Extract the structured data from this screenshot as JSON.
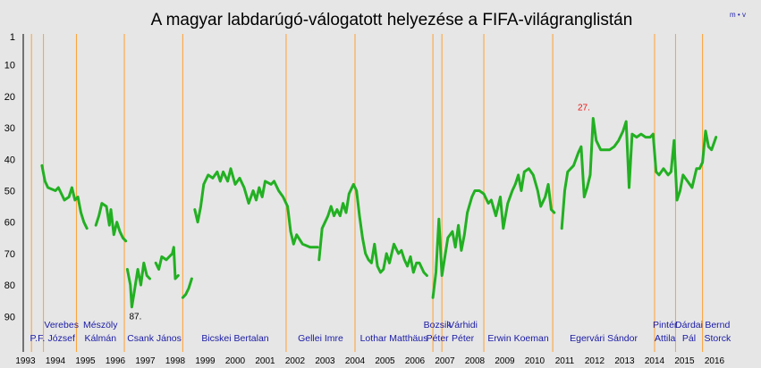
{
  "chart_data": {
    "type": "line",
    "title": "A magyar labdarúgó-válogatott helyezése a FIFA-világranglistán",
    "corner_label": "m • v",
    "y_axis": {
      "range": [
        1,
        100
      ],
      "inverted": true,
      "ticks": [
        "1",
        "10",
        "20",
        "30",
        "40",
        "50",
        "60",
        "70",
        "80",
        "90"
      ]
    },
    "x_axis": {
      "range": [
        1993,
        2016.6
      ],
      "ticks": [
        "1993",
        "1994",
        "1995",
        "1996",
        "1997",
        "1998",
        "1999",
        "2000",
        "2001",
        "2002",
        "2003",
        "2004",
        "2005",
        "2006",
        "2007",
        "2008",
        "2009",
        "2010",
        "2011",
        "2012",
        "2013",
        "2014",
        "2015",
        "2016"
      ]
    },
    "grid": false,
    "colors": {
      "background": "#e6e6e6",
      "line": "#22b022",
      "coach_change": "#ffa030",
      "coach_text": "#1a1aa6",
      "best_label": "#ee1111"
    },
    "coach_changes": [
      1993.2,
      1993.6,
      1994.7,
      1996.3,
      1998.25,
      2001.7,
      2004.0,
      2006.6,
      2006.9,
      2008.3,
      2010.6,
      2014.0,
      2014.7,
      2015.6
    ],
    "coaches": [
      {
        "lines": [
          "P.F."
        ],
        "x": 1993.4
      },
      {
        "lines": [
          "Verebes",
          "József"
        ],
        "x": 1994.2
      },
      {
        "lines": [
          "Mészöly",
          "Kálmán"
        ],
        "x": 1995.5
      },
      {
        "lines": [
          "Csank János"
        ],
        "x": 1997.3
      },
      {
        "lines": [
          "Bicskei Bertalan"
        ],
        "x": 2000.0
      },
      {
        "lines": [
          "Gellei Imre"
        ],
        "x": 2002.85
      },
      {
        "lines": [
          "Lothar Matthäus"
        ],
        "x": 2005.3
      },
      {
        "lines": [
          "Bozsik",
          "Péter"
        ],
        "x": 2006.75
      },
      {
        "lines": [
          "Várhidi",
          "Péter"
        ],
        "x": 2007.6
      },
      {
        "lines": [
          "Erwin Koeman"
        ],
        "x": 2009.45
      },
      {
        "lines": [
          "Egervári Sándor"
        ],
        "x": 2012.3
      },
      {
        "lines": [
          "Pintér",
          "Attila"
        ],
        "x": 2014.35
      },
      {
        "lines": [
          "Dárdai",
          "Pál"
        ],
        "x": 2015.15
      },
      {
        "lines": [
          "Bernd",
          "Storck"
        ],
        "x": 2016.1
      }
    ],
    "annotations": [
      {
        "text": "87.",
        "x": 1996.55,
        "y": 87,
        "kind": "worst"
      },
      {
        "text": "27.",
        "x": 2011.7,
        "y": 27,
        "kind": "best"
      }
    ],
    "series": [
      {
        "segments": [
          [
            [
              1993.55,
              42
            ],
            [
              1993.65,
              47
            ],
            [
              1993.75,
              49
            ],
            [
              1994.0,
              50
            ],
            [
              1994.1,
              49
            ],
            [
              1994.2,
              51
            ],
            [
              1994.3,
              53
            ],
            [
              1994.45,
              52
            ],
            [
              1994.55,
              49
            ],
            [
              1994.65,
              53
            ],
            [
              1994.75,
              52
            ],
            [
              1994.85,
              57
            ],
            [
              1994.95,
              60
            ],
            [
              1995.05,
              62
            ]
          ],
          [
            [
              1995.35,
              61
            ],
            [
              1995.45,
              58
            ],
            [
              1995.55,
              54
            ],
            [
              1995.7,
              55
            ],
            [
              1995.8,
              61
            ],
            [
              1995.85,
              56
            ],
            [
              1995.95,
              64
            ],
            [
              1996.05,
              60
            ],
            [
              1996.15,
              63
            ],
            [
              1996.25,
              65
            ],
            [
              1996.35,
              66
            ]
          ],
          [
            [
              1996.4,
              75
            ],
            [
              1996.5,
              80
            ],
            [
              1996.55,
              87
            ],
            [
              1996.65,
              81
            ],
            [
              1996.75,
              75
            ],
            [
              1996.85,
              80
            ],
            [
              1996.95,
              73
            ],
            [
              1997.05,
              77
            ],
            [
              1997.15,
              78
            ]
          ],
          [
            [
              1997.35,
              73
            ],
            [
              1997.45,
              75
            ],
            [
              1997.55,
              71
            ],
            [
              1997.7,
              72
            ],
            [
              1997.8,
              71
            ],
            [
              1997.9,
              70
            ],
            [
              1997.95,
              68
            ],
            [
              1998.0,
              78
            ],
            [
              1998.1,
              77
            ]
          ],
          [
            [
              1998.25,
              84
            ],
            [
              1998.35,
              83
            ],
            [
              1998.45,
              81
            ],
            [
              1998.55,
              78
            ]
          ],
          [
            [
              1998.65,
              56
            ],
            [
              1998.75,
              60
            ],
            [
              1998.85,
              55
            ],
            [
              1998.95,
              48
            ],
            [
              1999.1,
              45
            ],
            [
              1999.25,
              46
            ],
            [
              1999.4,
              44
            ],
            [
              1999.5,
              47
            ],
            [
              1999.6,
              44
            ],
            [
              1999.75,
              47
            ],
            [
              1999.85,
              43
            ],
            [
              2000.0,
              48
            ],
            [
              2000.15,
              46
            ],
            [
              2000.3,
              49
            ],
            [
              2000.45,
              54
            ],
            [
              2000.6,
              50
            ],
            [
              2000.7,
              53
            ],
            [
              2000.8,
              49
            ],
            [
              2000.9,
              52
            ],
            [
              2001.0,
              47
            ],
            [
              2001.2,
              48
            ],
            [
              2001.3,
              47
            ],
            [
              2001.45,
              50
            ],
            [
              2001.6,
              52
            ],
            [
              2001.75,
              55
            ],
            [
              2001.85,
              63
            ],
            [
              2001.95,
              67
            ],
            [
              2002.05,
              64
            ],
            [
              2002.25,
              67
            ],
            [
              2002.5,
              68
            ],
            [
              2002.75,
              68
            ]
          ],
          [
            [
              2002.8,
              72
            ],
            [
              2002.9,
              62
            ],
            [
              2003.0,
              60
            ],
            [
              2003.1,
              58
            ],
            [
              2003.2,
              55
            ],
            [
              2003.3,
              58
            ],
            [
              2003.4,
              56
            ],
            [
              2003.5,
              58
            ],
            [
              2003.6,
              54
            ],
            [
              2003.7,
              57
            ],
            [
              2003.8,
              51
            ],
            [
              2003.95,
              48
            ],
            [
              2004.05,
              50
            ],
            [
              2004.15,
              58
            ],
            [
              2004.25,
              65
            ],
            [
              2004.35,
              70
            ],
            [
              2004.45,
              72
            ],
            [
              2004.55,
              73
            ],
            [
              2004.65,
              67
            ],
            [
              2004.75,
              74
            ],
            [
              2004.85,
              76
            ],
            [
              2004.95,
              75
            ],
            [
              2005.05,
              70
            ],
            [
              2005.15,
              73
            ],
            [
              2005.3,
              67
            ],
            [
              2005.45,
              70
            ],
            [
              2005.55,
              69
            ],
            [
              2005.65,
              72
            ],
            [
              2005.75,
              74
            ],
            [
              2005.85,
              71
            ],
            [
              2005.95,
              76
            ],
            [
              2006.05,
              73
            ],
            [
              2006.15,
              73
            ],
            [
              2006.3,
              76
            ],
            [
              2006.4,
              77
            ]
          ],
          [
            [
              2006.6,
              84
            ],
            [
              2006.7,
              76
            ],
            [
              2006.8,
              59
            ],
            [
              2006.9,
              77
            ],
            [
              2007.0,
              71
            ],
            [
              2007.1,
              65
            ],
            [
              2007.25,
              63
            ],
            [
              2007.35,
              68
            ],
            [
              2007.45,
              61
            ],
            [
              2007.55,
              69
            ],
            [
              2007.65,
              64
            ],
            [
              2007.75,
              57
            ],
            [
              2007.9,
              52
            ],
            [
              2008.0,
              50
            ],
            [
              2008.15,
              50
            ],
            [
              2008.3,
              51
            ],
            [
              2008.45,
              54
            ],
            [
              2008.55,
              53
            ],
            [
              2008.7,
              58
            ],
            [
              2008.85,
              52
            ],
            [
              2008.95,
              62
            ],
            [
              2009.1,
              54
            ],
            [
              2009.25,
              50
            ],
            [
              2009.35,
              48
            ],
            [
              2009.45,
              45
            ],
            [
              2009.55,
              50
            ],
            [
              2009.65,
              44
            ],
            [
              2009.8,
              43
            ],
            [
              2009.95,
              45
            ],
            [
              2010.1,
              50
            ],
            [
              2010.2,
              55
            ],
            [
              2010.35,
              52
            ],
            [
              2010.45,
              48
            ],
            [
              2010.55,
              56
            ],
            [
              2010.65,
              57
            ]
          ],
          [
            [
              2010.9,
              62
            ],
            [
              2011.0,
              50
            ],
            [
              2011.1,
              44
            ],
            [
              2011.3,
              42
            ],
            [
              2011.45,
              38
            ],
            [
              2011.55,
              36
            ],
            [
              2011.65,
              52
            ],
            [
              2011.75,
              49
            ],
            [
              2011.85,
              45
            ],
            [
              2011.95,
              27
            ],
            [
              2012.05,
              34
            ],
            [
              2012.2,
              37
            ],
            [
              2012.5,
              37
            ],
            [
              2012.65,
              36
            ],
            [
              2012.8,
              34
            ],
            [
              2012.95,
              31
            ],
            [
              2013.05,
              28
            ],
            [
              2013.15,
              49
            ],
            [
              2013.25,
              32
            ],
            [
              2013.4,
              33
            ],
            [
              2013.55,
              32
            ],
            [
              2013.7,
              33
            ],
            [
              2013.85,
              33
            ],
            [
              2013.95,
              32
            ],
            [
              2014.05,
              44
            ],
            [
              2014.15,
              45
            ],
            [
              2014.3,
              43
            ],
            [
              2014.45,
              45
            ],
            [
              2014.55,
              44
            ],
            [
              2014.65,
              34
            ],
            [
              2014.75,
              53
            ],
            [
              2014.85,
              50
            ],
            [
              2014.95,
              45
            ],
            [
              2015.1,
              47
            ],
            [
              2015.25,
              49
            ],
            [
              2015.4,
              43
            ],
            [
              2015.5,
              43
            ],
            [
              2015.6,
              41
            ],
            [
              2015.7,
              31
            ],
            [
              2015.8,
              36
            ],
            [
              2015.9,
              37
            ],
            [
              2016.05,
              33
            ]
          ]
        ]
      }
    ]
  }
}
